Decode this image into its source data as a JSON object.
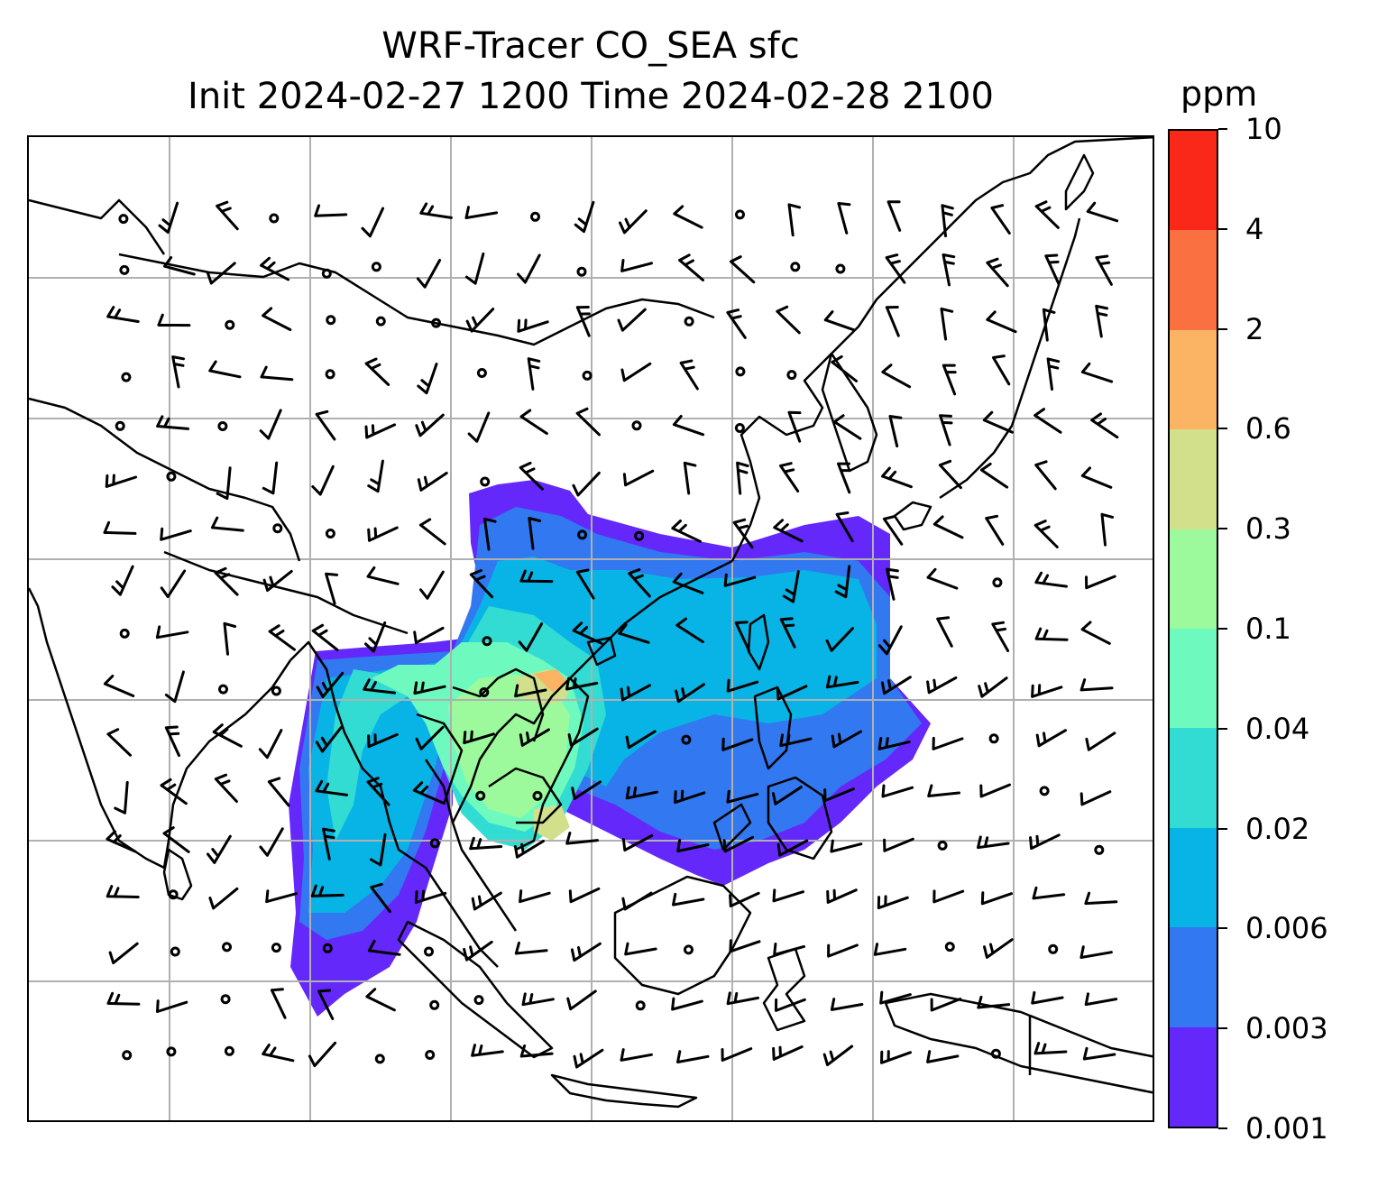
{
  "title": {
    "line1": "WRF-Tracer CO_SEA sfc",
    "line2": "Init 2024-02-27 1200 Time 2024-02-28 2100"
  },
  "colorbar": {
    "unit": "ppm",
    "ticks": [
      "0.001",
      "0.003",
      "0.006",
      "0.02",
      "0.04",
      "0.1",
      "0.3",
      "0.6",
      "2",
      "4",
      "10"
    ],
    "colors": [
      "#6428fa",
      "#3278f0",
      "#08b4e6",
      "#32dcd2",
      "#6efabe",
      "#9cfa9c",
      "#d2e08c",
      "#fab464",
      "#fa7040",
      "#fa2818"
    ]
  },
  "map": {
    "region": "Southeast and East Asia",
    "gridlines": true,
    "layers": [
      "coastlines",
      "country-borders",
      "co-tracer-shading",
      "wind-barbs",
      "calm-circles"
    ],
    "high_concentration_area": "Indochina peninsula"
  }
}
